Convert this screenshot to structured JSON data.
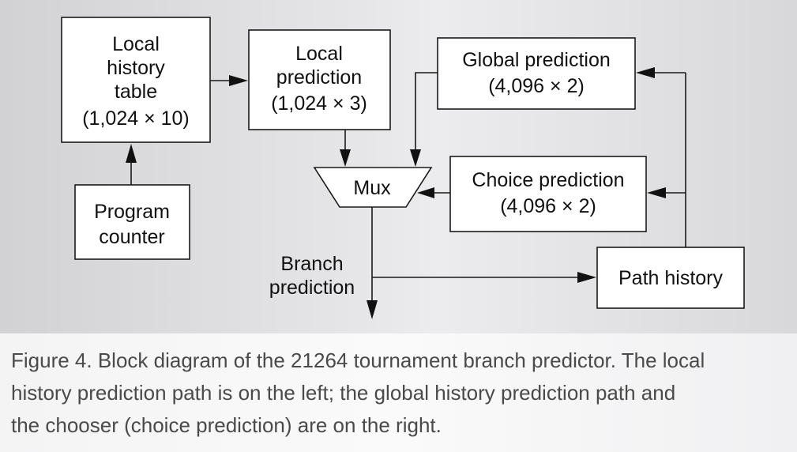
{
  "diagram": {
    "local_history_table": [
      "Local",
      "history",
      "table",
      "(1,024 × 10)"
    ],
    "program_counter": [
      "Program",
      "counter"
    ],
    "local_prediction": [
      "Local",
      "prediction",
      "(1,024 × 3)"
    ],
    "global_prediction": [
      "Global prediction",
      "(4,096 × 2)"
    ],
    "mux": "Mux",
    "choice_prediction": [
      "Choice prediction",
      "(4,096 × 2)"
    ],
    "branch_prediction": [
      "Branch",
      "prediction"
    ],
    "path_history": "Path history"
  },
  "caption": [
    "Figure 4. Block diagram of the 21264 tournament branch predictor. The local",
    "history prediction path is on the left; the global history prediction path and",
    "the chooser (choice prediction) are on the right."
  ],
  "colors": {
    "panel_background": "#e2e2e4",
    "caption_background": "#f7f7f8",
    "caption_text": "#4a4a4a",
    "box_stroke": "#1a1a1a"
  }
}
